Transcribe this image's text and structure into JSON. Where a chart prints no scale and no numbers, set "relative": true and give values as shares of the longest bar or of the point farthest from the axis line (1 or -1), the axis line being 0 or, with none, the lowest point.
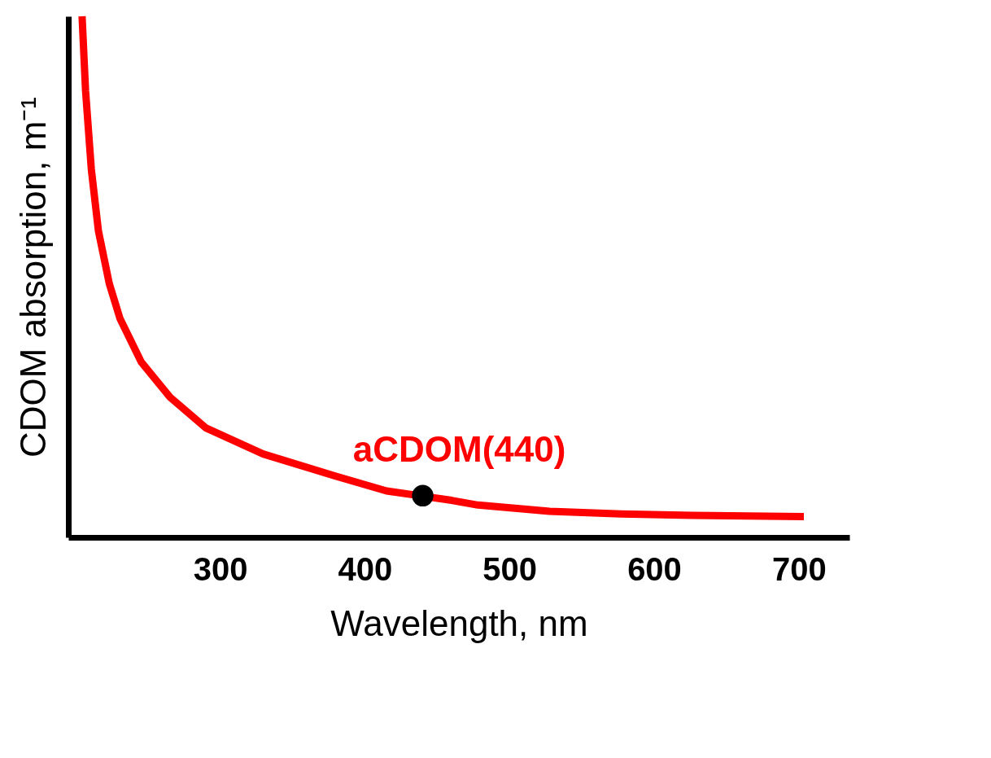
{
  "chart_data": {
    "type": "line",
    "xlabel": "Wavelength, nm",
    "ylabel": "CDOM absorption, m⁻¹",
    "relative": true,
    "xlim": [
      195,
      735
    ],
    "xticks": [
      300,
      400,
      500,
      600,
      700
    ],
    "series": [
      {
        "color": "#ff0000",
        "x": [
          204.5,
          206.9,
          210.9,
          215.8,
          223.3,
          230.7,
          245.5,
          265.3,
          290.1,
          329.7,
          379.2,
          415,
          460,
          478.2,
          527.7,
          577.2,
          626.7,
          703.5
        ],
        "values": [
          1.0,
          0.857,
          0.706,
          0.588,
          0.487,
          0.42,
          0.336,
          0.269,
          0.21,
          0.16,
          0.118,
          0.089,
          0.071,
          0.062,
          0.05,
          0.045,
          0.042,
          0.04
        ]
      },
      {
        "type": "scatter",
        "color": "#000000",
        "marker": "circle",
        "x": [
          440
        ],
        "values": [
          0.08
        ]
      }
    ],
    "annotations": [
      {
        "text": "aCDOM(440)",
        "x": 440,
        "y": 0.08
      }
    ]
  }
}
